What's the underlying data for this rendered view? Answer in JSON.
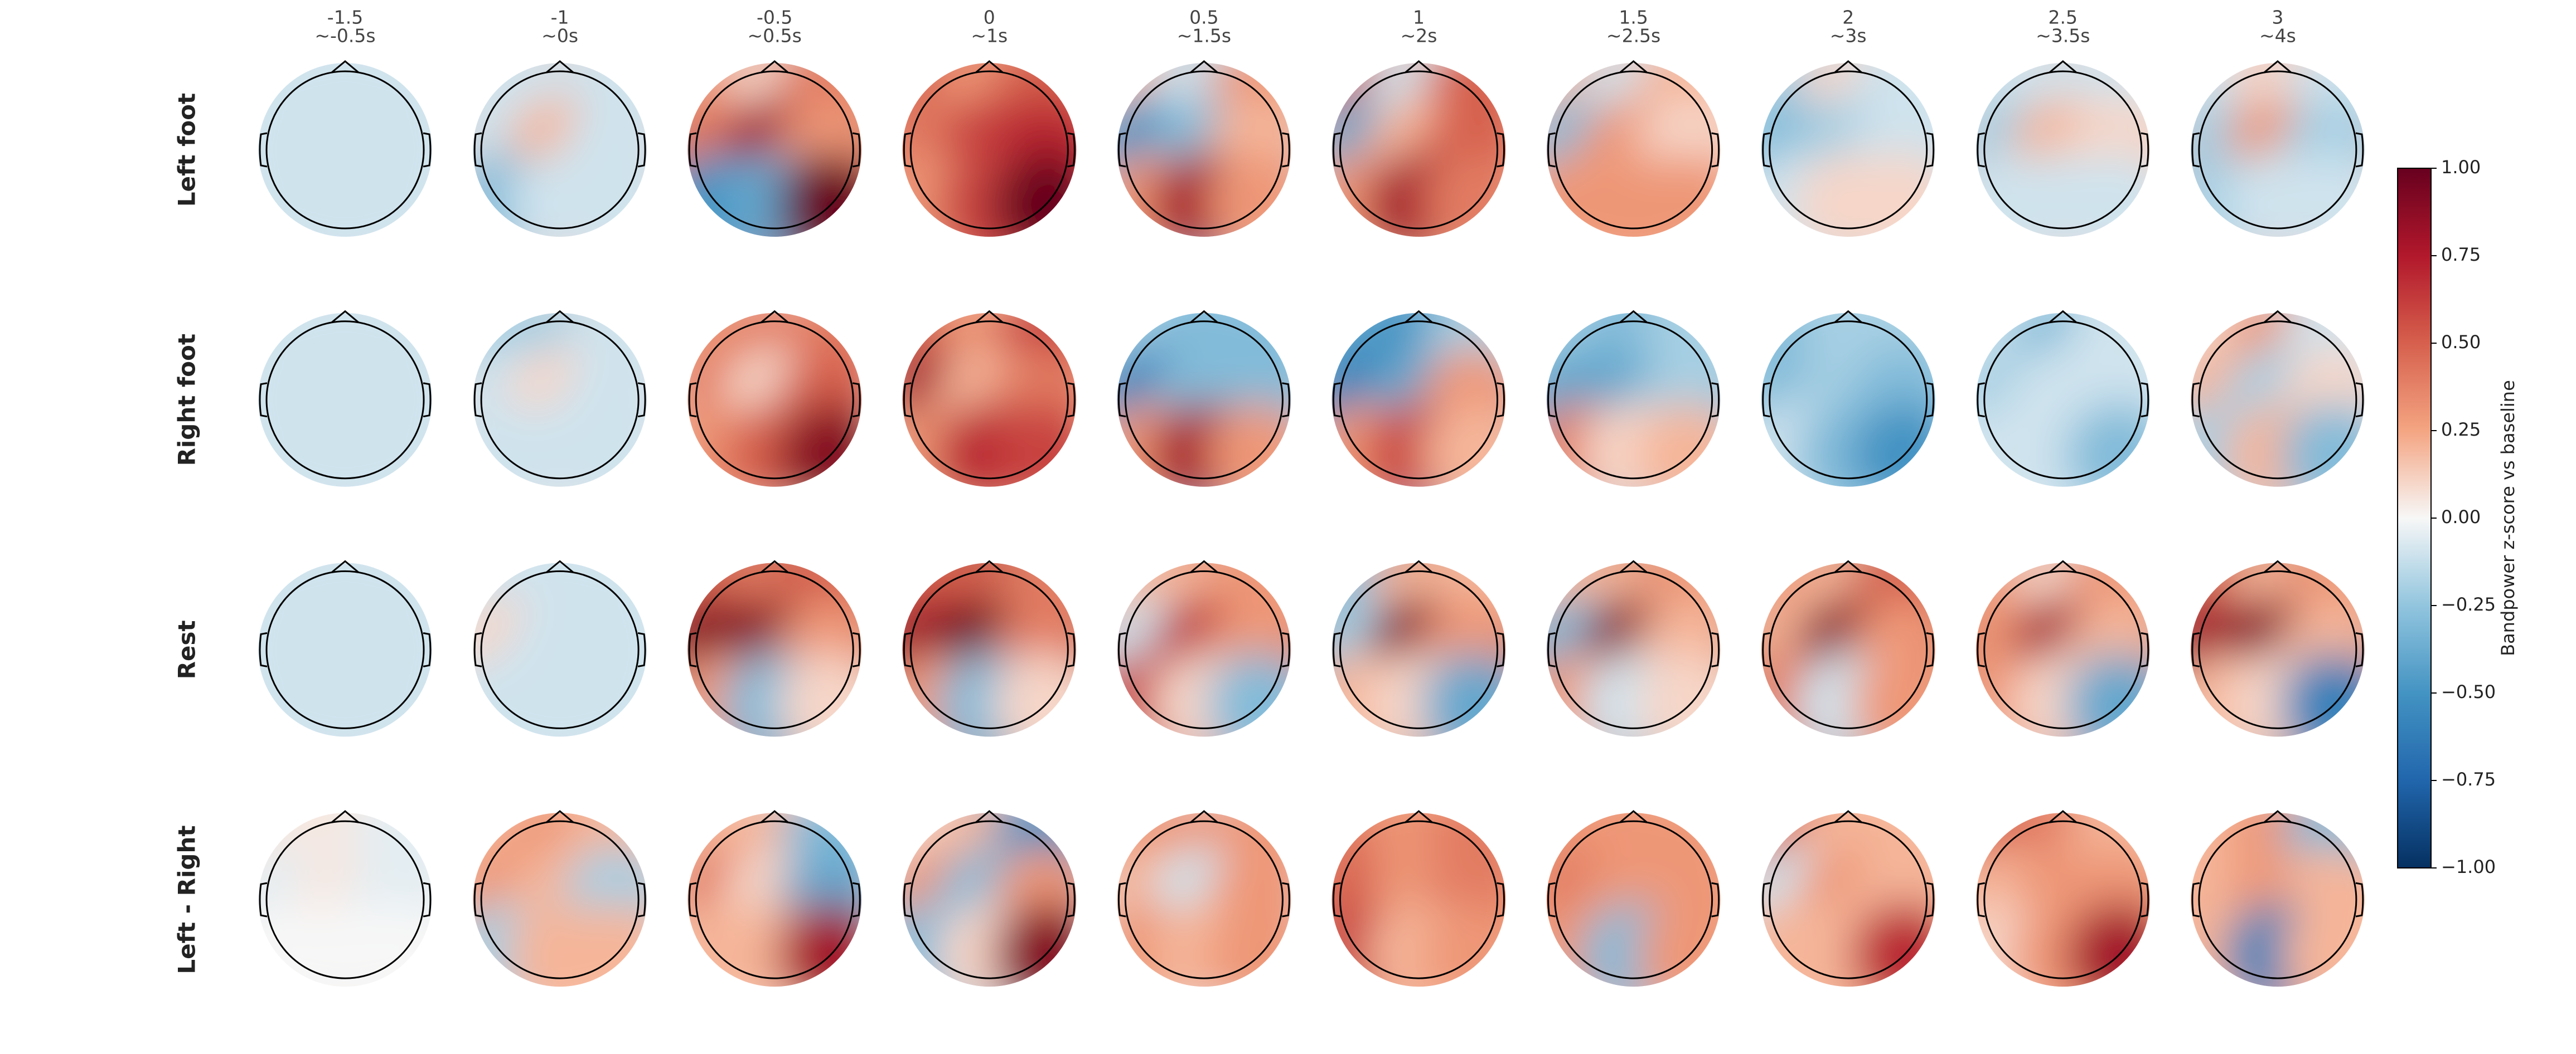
{
  "chart_data": {
    "type": "topomap",
    "categories": [
      "-1.5",
      "-1",
      "-0.5",
      "0",
      "0.5",
      "1",
      "1.5",
      "2",
      "2.5",
      "3"
    ],
    "windows": [
      "~-0.5s",
      "~0s",
      "~0.5s",
      "~1s",
      "~1.5s",
      "~2s",
      "~2.5s",
      "~3s",
      "~3.5s",
      "~4s"
    ],
    "series": [
      {
        "name": "Left foot",
        "values": [
          [
            -0.1,
            -0.1,
            -0.1,
            -0.1,
            -0.1,
            -0.1,
            -0.1,
            -0.1,
            -0.1
          ],
          [
            -0.1,
            -0.1,
            -0.1,
            -0.1,
            0.2,
            -0.1,
            -0.3,
            -0.1,
            -0.1
          ],
          [
            0.3,
            0.1,
            0.4,
            0.4,
            0.8,
            0.3,
            -0.5,
            -0.4,
            1.0
          ],
          [
            0.5,
            0.3,
            0.5,
            0.4,
            0.6,
            0.7,
            0.3,
            0.6,
            1.0
          ],
          [
            0.2,
            -0.1,
            0.3,
            -0.5,
            -0.3,
            0.2,
            0.3,
            0.8,
            0.3
          ],
          [
            0.5,
            -0.1,
            0.5,
            -0.4,
            0.2,
            0.5,
            0.3,
            0.8,
            0.4
          ],
          [
            0.2,
            -0.1,
            0.2,
            -0.3,
            0.3,
            0.1,
            0.3,
            0.3,
            0.3
          ],
          [
            -0.2,
            0.1,
            -0.1,
            -0.3,
            -0.2,
            -0.1,
            -0.1,
            0.1,
            0.1
          ],
          [
            -0.1,
            -0.1,
            -0.1,
            -0.2,
            0.2,
            0.1,
            -0.1,
            -0.1,
            -0.1
          ],
          [
            -0.1,
            0.1,
            -0.1,
            -0.2,
            0.3,
            -0.2,
            -0.2,
            -0.1,
            -0.1
          ]
        ]
      },
      {
        "name": "Right foot",
        "values": [
          [
            -0.1,
            -0.1,
            -0.1,
            -0.1,
            -0.1,
            -0.1,
            -0.1,
            -0.1,
            -0.1
          ],
          [
            -0.2,
            -0.2,
            -0.1,
            -0.1,
            0.1,
            -0.1,
            -0.1,
            -0.1,
            -0.1
          ],
          [
            0.3,
            0.4,
            0.4,
            0.4,
            0.1,
            0.5,
            0.3,
            0.5,
            0.9
          ],
          [
            0.5,
            0.3,
            0.6,
            0.8,
            0.2,
            0.4,
            0.3,
            0.7,
            0.6
          ],
          [
            -0.2,
            -0.3,
            -0.3,
            -0.6,
            -0.3,
            -0.3,
            0.3,
            0.8,
            0.3
          ],
          [
            -0.4,
            -0.5,
            -0.2,
            -0.6,
            -0.4,
            0.3,
            0.3,
            0.6,
            0.2
          ],
          [
            -0.2,
            -0.3,
            -0.2,
            -0.4,
            -0.4,
            -0.2,
            0.4,
            0.1,
            0.2
          ],
          [
            -0.3,
            -0.2,
            -0.2,
            -0.3,
            -0.2,
            -0.3,
            -0.1,
            -0.3,
            -0.5
          ],
          [
            -0.1,
            -0.3,
            -0.1,
            -0.2,
            -0.1,
            -0.1,
            -0.1,
            -0.1,
            -0.3
          ],
          [
            0.1,
            0.3,
            -0.1,
            0.2,
            -0.2,
            0.1,
            -0.2,
            0.2,
            -0.3
          ]
        ]
      },
      {
        "name": "Rest",
        "values": [
          [
            -0.1,
            -0.1,
            -0.1,
            -0.1,
            -0.1,
            -0.1,
            -0.1,
            -0.1,
            -0.1
          ],
          [
            -0.1,
            -0.1,
            -0.1,
            0.1,
            -0.1,
            -0.1,
            -0.1,
            -0.1,
            -0.1
          ],
          [
            0.5,
            0.4,
            0.5,
            0.9,
            0.9,
            0.3,
            0.3,
            -0.3,
            0.1
          ],
          [
            0.5,
            0.5,
            0.4,
            0.8,
            1.0,
            0.4,
            0.3,
            -0.3,
            0.1
          ],
          [
            0.2,
            0.2,
            0.3,
            -0.1,
            0.7,
            0.3,
            0.6,
            0.1,
            -0.3
          ],
          [
            -0.3,
            0.2,
            0.2,
            -0.2,
            0.9,
            0.3,
            0.2,
            0.1,
            -0.4
          ],
          [
            0.2,
            0.2,
            0.3,
            -0.3,
            0.9,
            0.2,
            0.3,
            -0.1,
            0.1
          ],
          [
            0.3,
            0.2,
            0.5,
            0.2,
            0.9,
            0.3,
            0.4,
            -0.1,
            0.3
          ],
          [
            0.3,
            0.1,
            0.3,
            0.3,
            0.8,
            0.2,
            0.3,
            0.1,
            -0.4
          ],
          [
            0.5,
            0.2,
            0.3,
            0.8,
            0.9,
            0.2,
            0.2,
            0.1,
            -0.6
          ]
        ]
      },
      {
        "name": "Left - Right",
        "values": [
          [
            0.05,
            0.05,
            -0.05,
            -0.05,
            0.05,
            -0.05,
            0,
            0,
            0
          ],
          [
            0.2,
            0.3,
            0.2,
            0.3,
            0.2,
            -0.2,
            -0.2,
            0.2,
            0.2
          ],
          [
            0.2,
            0.2,
            -0.3,
            0.4,
            0.1,
            -0.4,
            0.2,
            0.2,
            0.8
          ],
          [
            0.1,
            0.2,
            -0.5,
            0.3,
            -0.3,
            0.3,
            -0.3,
            0.1,
            0.9
          ],
          [
            0.3,
            0.3,
            0.3,
            0.2,
            -0.1,
            0.3,
            0.3,
            0.2,
            0.3
          ],
          [
            0.4,
            0.3,
            0.4,
            0.5,
            0.3,
            0.4,
            0.6,
            0.2,
            0.3
          ],
          [
            0.3,
            0.3,
            0.3,
            0.4,
            0.3,
            0.3,
            0.3,
            -0.3,
            0.3
          ],
          [
            0.5,
            0.2,
            0.2,
            -0.1,
            0.3,
            0.2,
            0.2,
            0.2,
            0.7
          ],
          [
            0.5,
            0.4,
            0.2,
            0.2,
            0.3,
            0.3,
            0.1,
            0.3,
            0.8
          ],
          [
            0.2,
            0.3,
            -0.3,
            0.2,
            0.3,
            0.2,
            0.2,
            -0.6,
            0.2
          ]
        ]
      }
    ],
    "clim": [
      -1,
      1
    ],
    "cticks": [
      {
        "value": -1,
        "label": "−1.00"
      },
      {
        "value": -0.75,
        "label": "−0.75"
      },
      {
        "value": -0.5,
        "label": "−0.50"
      },
      {
        "value": -0.25,
        "label": "−0.25"
      },
      {
        "value": 0,
        "label": "0.00"
      },
      {
        "value": 0.25,
        "label": "0.25"
      },
      {
        "value": 0.5,
        "label": "0.50"
      },
      {
        "value": 0.75,
        "label": "0.75"
      },
      {
        "value": 1,
        "label": "1.00"
      }
    ],
    "colorbar_label": "Bandpower z-score vs baseline",
    "cmap_colors": [
      "#053061",
      "#2166ac",
      "#4393c3",
      "#92c5de",
      "#f7f7f7",
      "#f4a582",
      "#d6604d",
      "#b2182b",
      "#67001f"
    ]
  }
}
